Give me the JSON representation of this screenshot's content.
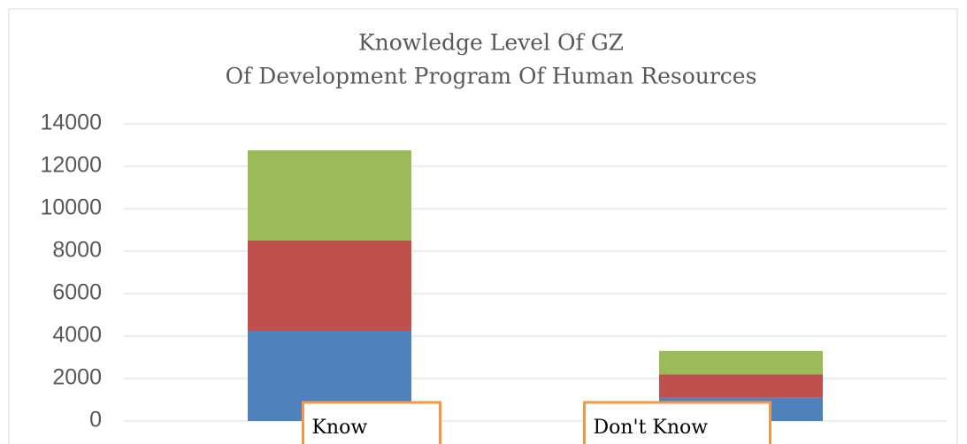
{
  "chart_data": {
    "type": "bar",
    "stacked": true,
    "title": [
      "Knowledge Level Of GZ",
      "Of Development Program Of Human Resources"
    ],
    "categories": [
      "Know",
      "Don't Know"
    ],
    "series": [
      {
        "color": "#4f81bd",
        "values": [
          4250,
          1100
        ]
      },
      {
        "color": "#c0504d",
        "values": [
          4250,
          1100
        ]
      },
      {
        "color": "#9bbb59",
        "values": [
          4250,
          1100
        ]
      }
    ],
    "ylim": [
      0,
      14000
    ],
    "yticks": [
      0,
      2000,
      4000,
      6000,
      8000,
      10000,
      12000,
      14000
    ],
    "grid": true
  }
}
